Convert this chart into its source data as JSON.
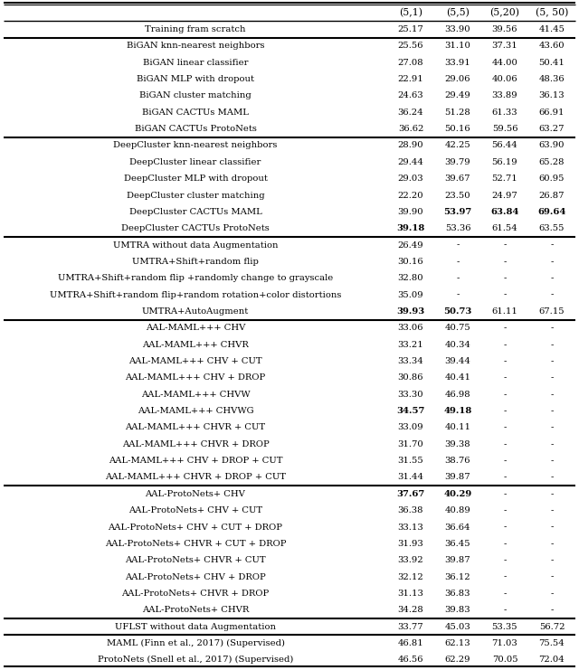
{
  "columns": [
    "(5,1)",
    "(5,5)",
    "(5,20)",
    "(5, 50)"
  ],
  "rows": [
    {
      "label": "Training fram scratch",
      "values": [
        "25.17",
        "33.90",
        "39.56",
        "41.45"
      ],
      "bold_vals": [],
      "group_above": true
    },
    {
      "label": "BiGAN knn-nearest neighbors",
      "values": [
        "25.56",
        "31.10",
        "37.31",
        "43.60"
      ],
      "bold_vals": [],
      "group_above": true
    },
    {
      "label": "BiGAN linear classifier",
      "values": [
        "27.08",
        "33.91",
        "44.00",
        "50.41"
      ],
      "bold_vals": [],
      "group_above": false
    },
    {
      "label": "BiGAN MLP with dropout",
      "values": [
        "22.91",
        "29.06",
        "40.06",
        "48.36"
      ],
      "bold_vals": [],
      "group_above": false
    },
    {
      "label": "BiGAN cluster matching",
      "values": [
        "24.63",
        "29.49",
        "33.89",
        "36.13"
      ],
      "bold_vals": [],
      "group_above": false
    },
    {
      "label": "BiGAN CACTUs MAML",
      "values": [
        "36.24",
        "51.28",
        "61.33",
        "66.91"
      ],
      "bold_vals": [],
      "group_above": false
    },
    {
      "label": "BiGAN CACTUs ProtoNets",
      "values": [
        "36.62",
        "50.16",
        "59.56",
        "63.27"
      ],
      "bold_vals": [],
      "group_above": false
    },
    {
      "label": "DeepCluster knn-nearest neighbors",
      "values": [
        "28.90",
        "42.25",
        "56.44",
        "63.90"
      ],
      "bold_vals": [],
      "group_above": true
    },
    {
      "label": "DeepCluster linear classifier",
      "values": [
        "29.44",
        "39.79",
        "56.19",
        "65.28"
      ],
      "bold_vals": [],
      "group_above": false
    },
    {
      "label": "DeepCluster MLP with dropout",
      "values": [
        "29.03",
        "39.67",
        "52.71",
        "60.95"
      ],
      "bold_vals": [],
      "group_above": false
    },
    {
      "label": "DeepCluster cluster matching",
      "values": [
        "22.20",
        "23.50",
        "24.97",
        "26.87"
      ],
      "bold_vals": [],
      "group_above": false
    },
    {
      "label": "DeepCluster CACTUs MAML",
      "values": [
        "39.90",
        "53.97",
        "63.84",
        "69.64"
      ],
      "bold_vals": [
        1,
        2,
        3
      ],
      "group_above": false
    },
    {
      "label": "DeepCluster CACTUs ProtoNets",
      "values": [
        "39.18",
        "53.36",
        "61.54",
        "63.55"
      ],
      "bold_vals": [
        0
      ],
      "group_above": false
    },
    {
      "label": "UMTRA without data Augmentation",
      "values": [
        "26.49",
        "-",
        "-",
        "-"
      ],
      "bold_vals": [],
      "group_above": true
    },
    {
      "label": "UMTRA+Shift+random flip",
      "values": [
        "30.16",
        "-",
        "-",
        "-"
      ],
      "bold_vals": [],
      "group_above": false
    },
    {
      "label": "UMTRA+Shift+random flip +randomly change to grayscale",
      "values": [
        "32.80",
        "-",
        "-",
        "-"
      ],
      "bold_vals": [],
      "group_above": false
    },
    {
      "label": "UMTRA+Shift+random flip+random rotation+color distortions",
      "values": [
        "35.09",
        "-",
        "-",
        "-"
      ],
      "bold_vals": [],
      "group_above": false
    },
    {
      "label": "UMTRA+AutoAugment",
      "values": [
        "39.93",
        "50.73",
        "61.11",
        "67.15"
      ],
      "bold_vals": [
        0,
        1
      ],
      "group_above": false
    },
    {
      "label": "AAL-MAML+++ CHV",
      "values": [
        "33.06",
        "40.75",
        "-",
        "-"
      ],
      "bold_vals": [],
      "group_above": true
    },
    {
      "label": "AAL-MAML+++ CHVR",
      "values": [
        "33.21",
        "40.34",
        "-",
        "-"
      ],
      "bold_vals": [],
      "group_above": false
    },
    {
      "label": "AAL-MAML+++ CHV + CUT",
      "values": [
        "33.34",
        "39.44",
        "-",
        "-"
      ],
      "bold_vals": [],
      "group_above": false
    },
    {
      "label": "AAL-MAML+++ CHV + DROP",
      "values": [
        "30.86",
        "40.41",
        "-",
        "-"
      ],
      "bold_vals": [],
      "group_above": false
    },
    {
      "label": "AAL-MAML+++ CHVW",
      "values": [
        "33.30",
        "46.98",
        "-",
        "-"
      ],
      "bold_vals": [],
      "group_above": false
    },
    {
      "label": "AAL-MAML+++ CHVWG",
      "values": [
        "34.57",
        "49.18",
        "-",
        "-"
      ],
      "bold_vals": [
        0,
        1
      ],
      "group_above": false
    },
    {
      "label": "AAL-MAML+++ CHVR + CUT",
      "values": [
        "33.09",
        "40.11",
        "-",
        "-"
      ],
      "bold_vals": [],
      "group_above": false
    },
    {
      "label": "AAL-MAML+++ CHVR + DROP",
      "values": [
        "31.70",
        "39.38",
        "-",
        "-"
      ],
      "bold_vals": [],
      "group_above": false
    },
    {
      "label": "AAL-MAML+++ CHV + DROP + CUT",
      "values": [
        "31.55",
        "38.76",
        "-",
        "-"
      ],
      "bold_vals": [],
      "group_above": false
    },
    {
      "label": "AAL-MAML+++ CHVR + DROP + CUT",
      "values": [
        "31.44",
        "39.87",
        "-",
        "-"
      ],
      "bold_vals": [],
      "group_above": false
    },
    {
      "label": "AAL-ProtoNets+ CHV",
      "values": [
        "37.67",
        "40.29",
        "-",
        "-"
      ],
      "bold_vals": [
        0,
        1
      ],
      "group_above": true
    },
    {
      "label": "AAL-ProtoNets+ CHV + CUT",
      "values": [
        "36.38",
        "40.89",
        "-",
        "-"
      ],
      "bold_vals": [],
      "group_above": false
    },
    {
      "label": "AAL-ProtoNets+ CHV + CUT + DROP",
      "values": [
        "33.13",
        "36.64",
        "-",
        "-"
      ],
      "bold_vals": [],
      "group_above": false
    },
    {
      "label": "AAL-ProtoNets+ CHVR + CUT + DROP",
      "values": [
        "31.93",
        "36.45",
        "-",
        "-"
      ],
      "bold_vals": [],
      "group_above": false
    },
    {
      "label": "AAL-ProtoNets+ CHVR + CUT",
      "values": [
        "33.92",
        "39.87",
        "-",
        "-"
      ],
      "bold_vals": [],
      "group_above": false
    },
    {
      "label": "AAL-ProtoNets+ CHV + DROP",
      "values": [
        "32.12",
        "36.12",
        "-",
        "-"
      ],
      "bold_vals": [],
      "group_above": false
    },
    {
      "label": "AAL-ProtoNets+ CHVR + DROP",
      "values": [
        "31.13",
        "36.83",
        "-",
        "-"
      ],
      "bold_vals": [],
      "group_above": false
    },
    {
      "label": "AAL-ProtoNets+ CHVR",
      "values": [
        "34.28",
        "39.83",
        "-",
        "-"
      ],
      "bold_vals": [],
      "group_above": false
    },
    {
      "label": "UFLST without data Augmentation",
      "values": [
        "33.77",
        "45.03",
        "53.35",
        "56.72"
      ],
      "bold_vals": [],
      "group_above": true
    },
    {
      "label": "MAML (Finn et al., 2017) (Supervised)",
      "values": [
        "46.81",
        "62.13",
        "71.03",
        "75.54"
      ],
      "bold_vals": [],
      "group_above": true
    },
    {
      "label": "ProtoNets (Snell et al., 2017) (Supervised)",
      "values": [
        "46.56",
        "62.29",
        "70.05",
        "72.04"
      ],
      "bold_vals": [],
      "group_above": false
    }
  ],
  "font_size": 7.2,
  "header_font_size": 7.8
}
